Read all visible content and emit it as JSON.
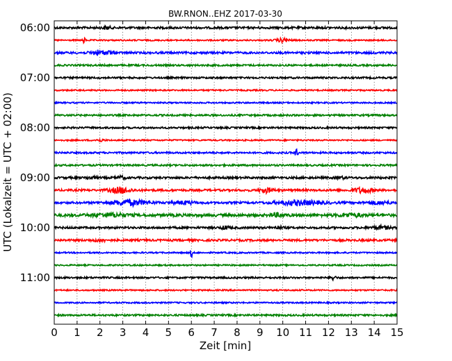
{
  "chart_data": {
    "type": "line",
    "title": "BW.RNON..EHZ 2017-03-30",
    "xlabel": "Zeit  [min]",
    "ylabel": "UTC (Lokalzeit = UTC + 02:00)",
    "xlim": [
      0,
      15
    ],
    "x_ticks": [
      "0",
      "1",
      "2",
      "3",
      "4",
      "5",
      "6",
      "7",
      "8",
      "9",
      "10",
      "11",
      "12",
      "13",
      "14",
      "15"
    ],
    "y_tick_labels": [
      "06:00",
      "07:00",
      "08:00",
      "09:00",
      "10:00",
      "11:00"
    ],
    "grid": true,
    "trace_colors": [
      "#000000",
      "#ff0000",
      "#0000ff",
      "#008000"
    ],
    "traces": [
      {
        "start": "06:00",
        "color": "#000000",
        "amp": 3,
        "events": [
          {
            "t": 2.3,
            "a": 5,
            "w": 0.15
          }
        ]
      },
      {
        "start": "06:15",
        "color": "#ff0000",
        "amp": 2,
        "events": [
          {
            "t": 1.3,
            "a": 10,
            "w": 0.05
          },
          {
            "t": 10.0,
            "a": 5,
            "w": 0.3
          }
        ]
      },
      {
        "start": "06:30",
        "color": "#0000ff",
        "amp": 3,
        "events": [
          {
            "t": 1.9,
            "a": 6,
            "w": 0.3
          },
          {
            "t": 2.4,
            "a": 4,
            "w": 0.2
          }
        ]
      },
      {
        "start": "06:45",
        "color": "#008000",
        "amp": 2.5,
        "events": []
      },
      {
        "start": "07:00",
        "color": "#000000",
        "amp": 2.5,
        "events": []
      },
      {
        "start": "07:15",
        "color": "#ff0000",
        "amp": 2,
        "events": []
      },
      {
        "start": "07:30",
        "color": "#0000ff",
        "amp": 2,
        "events": []
      },
      {
        "start": "07:45",
        "color": "#008000",
        "amp": 2.5,
        "events": []
      },
      {
        "start": "08:00",
        "color": "#000000",
        "amp": 2.5,
        "events": []
      },
      {
        "start": "08:15",
        "color": "#ff0000",
        "amp": 2,
        "events": [
          {
            "t": 2.0,
            "a": 3,
            "w": 0.2
          }
        ]
      },
      {
        "start": "08:30",
        "color": "#0000ff",
        "amp": 2.5,
        "events": [
          {
            "t": 10.6,
            "a": 12,
            "w": 0.06
          }
        ]
      },
      {
        "start": "08:45",
        "color": "#008000",
        "amp": 2.5,
        "events": []
      },
      {
        "start": "09:00",
        "color": "#000000",
        "amp": 3,
        "events": [
          {
            "t": 1.6,
            "a": 4,
            "w": 0.2
          },
          {
            "t": 2.9,
            "a": 4,
            "w": 0.2
          },
          {
            "t": 12.5,
            "a": 3,
            "w": 0.2
          }
        ]
      },
      {
        "start": "09:15",
        "color": "#ff0000",
        "amp": 3,
        "events": [
          {
            "t": 2.9,
            "a": 8,
            "w": 0.45
          },
          {
            "t": 9.3,
            "a": 6,
            "w": 0.3
          },
          {
            "t": 13.5,
            "a": 7,
            "w": 0.4
          }
        ]
      },
      {
        "start": "09:30",
        "color": "#0000ff",
        "amp": 3,
        "events": [
          {
            "t": 3.3,
            "a": 7,
            "w": 0.8
          },
          {
            "t": 5.7,
            "a": 4,
            "w": 0.5
          },
          {
            "t": 10.7,
            "a": 6,
            "w": 1.0
          },
          {
            "t": 14.2,
            "a": 4,
            "w": 0.5
          }
        ]
      },
      {
        "start": "09:45",
        "color": "#008000",
        "amp": 4,
        "events": [
          {
            "t": 2.5,
            "a": 4,
            "w": 0.8
          },
          {
            "t": 9.7,
            "a": 4,
            "w": 0.3
          },
          {
            "t": 13.0,
            "a": 4,
            "w": 0.5
          }
        ]
      },
      {
        "start": "10:00",
        "color": "#000000",
        "amp": 3,
        "events": [
          {
            "t": 7.5,
            "a": 4,
            "w": 0.2
          },
          {
            "t": 9.8,
            "a": 3,
            "w": 0.2
          },
          {
            "t": 14.3,
            "a": 4,
            "w": 0.4
          }
        ]
      },
      {
        "start": "10:15",
        "color": "#ff0000",
        "amp": 3,
        "events": [
          {
            "t": 2.0,
            "a": 3,
            "w": 0.3
          }
        ]
      },
      {
        "start": "10:30",
        "color": "#0000ff",
        "amp": 2,
        "events": [
          {
            "t": 6.0,
            "a": 16,
            "w": 0.04
          }
        ]
      },
      {
        "start": "10:45",
        "color": "#008000",
        "amp": 2,
        "events": []
      },
      {
        "start": "11:00",
        "color": "#000000",
        "amp": 2.5,
        "events": [
          {
            "t": 12.2,
            "a": 8,
            "w": 0.1
          }
        ]
      },
      {
        "start": "11:15",
        "color": "#ff0000",
        "amp": 2,
        "events": []
      },
      {
        "start": "11:30",
        "color": "#0000ff",
        "amp": 2,
        "events": []
      },
      {
        "start": "11:45",
        "color": "#008000",
        "amp": 2.5,
        "events": []
      }
    ]
  }
}
